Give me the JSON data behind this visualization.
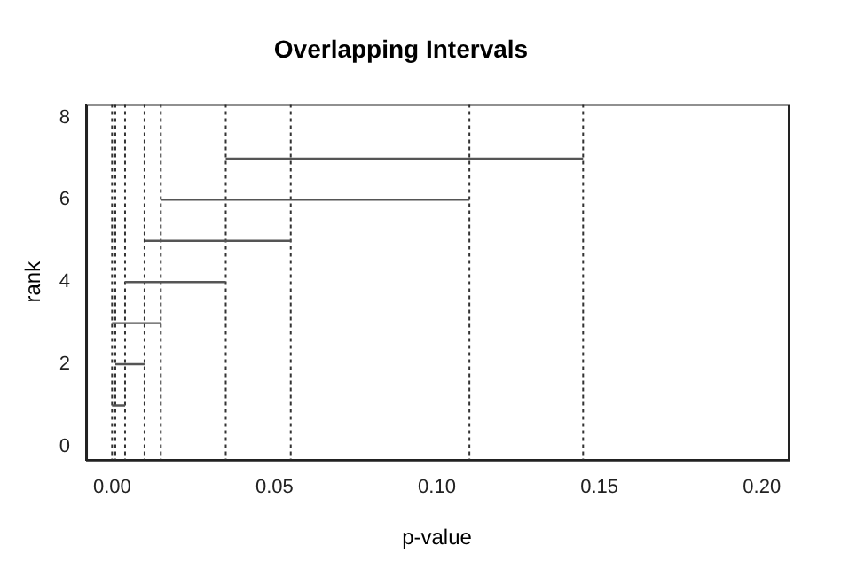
{
  "chart_data": {
    "type": "line",
    "title": "Overlapping Intervals",
    "xlabel": "p-value",
    "ylabel": "rank",
    "xlim": [
      -0.008,
      0.208
    ],
    "ylim": [
      -0.32,
      8.32
    ],
    "xticks": [
      {
        "value": 0,
        "label": "0.00"
      },
      {
        "value": 0.05,
        "label": "0.05"
      },
      {
        "value": 0.1,
        "label": "0.10"
      },
      {
        "value": 0.15,
        "label": "0.15"
      },
      {
        "value": 0.2,
        "label": "0.20"
      }
    ],
    "yticks": [
      0,
      2,
      4,
      6,
      8
    ],
    "marker": "none",
    "line_style": "solid",
    "grid": false,
    "legend": false,
    "series": [
      {
        "color": "#555555",
        "x": [
          0,
          0.004
        ],
        "values": [
          1,
          1
        ]
      },
      {
        "color": "#555555",
        "x": [
          0.001,
          0.01
        ],
        "values": [
          2,
          2
        ]
      },
      {
        "color": "#555555",
        "x": [
          0,
          0.015
        ],
        "values": [
          3,
          3
        ]
      },
      {
        "color": "#555555",
        "x": [
          0.004,
          0.035
        ],
        "values": [
          4,
          4
        ]
      },
      {
        "color": "#555555",
        "x": [
          0.01,
          0.055
        ],
        "values": [
          5,
          5
        ]
      },
      {
        "color": "#555555",
        "x": [
          0.015,
          0.11
        ],
        "values": [
          6,
          6
        ]
      },
      {
        "color": "#555555",
        "x": [
          0.035,
          0.145
        ],
        "values": [
          7,
          7
        ]
      }
    ],
    "ref_lines": [
      {
        "axis": "x",
        "value": 0,
        "color": "#333333",
        "line_style": "dotted"
      },
      {
        "axis": "x",
        "value": 0.001,
        "color": "#333333",
        "line_style": "dotted"
      },
      {
        "axis": "x",
        "value": 0.004,
        "color": "#333333",
        "line_style": "dotted"
      },
      {
        "axis": "x",
        "value": 0.01,
        "color": "#333333",
        "line_style": "dotted"
      },
      {
        "axis": "x",
        "value": 0.015,
        "color": "#333333",
        "line_style": "dotted"
      },
      {
        "axis": "x",
        "value": 0.035,
        "color": "#333333",
        "line_style": "dotted"
      },
      {
        "axis": "x",
        "value": 0.055,
        "color": "#333333",
        "line_style": "dotted"
      },
      {
        "axis": "x",
        "value": 0.11,
        "color": "#333333",
        "line_style": "dotted"
      },
      {
        "axis": "x",
        "value": 0.145,
        "color": "#333333",
        "line_style": "dotted"
      }
    ]
  }
}
